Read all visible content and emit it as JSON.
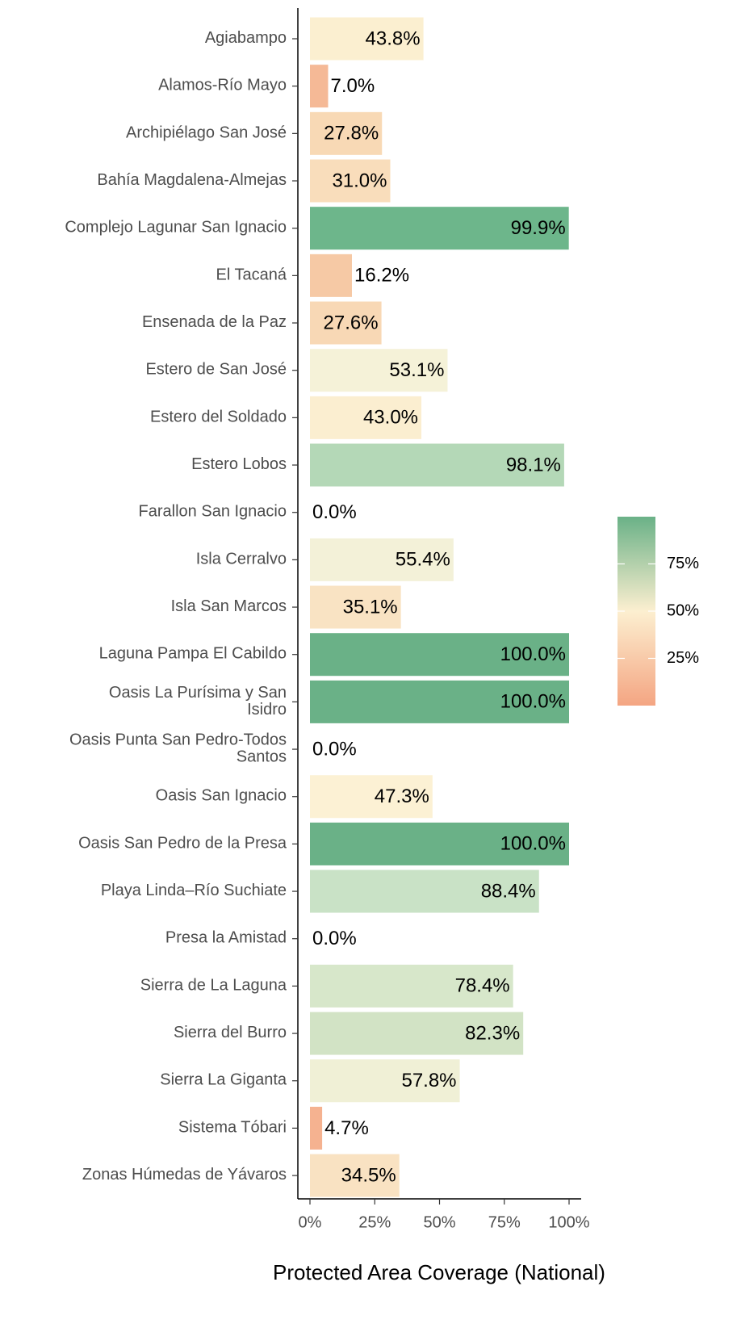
{
  "chart_data": {
    "type": "bar",
    "orientation": "horizontal",
    "x_label": "Protected Area Coverage (National)",
    "categories": [
      "Agiabampo",
      "Alamos-Río Mayo",
      "Archipiélago San José",
      "Bahía Magdalena-Almejas",
      "Complejo Lagunar San Ignacio",
      "El Tacaná",
      "Ensenada de la Paz",
      "Estero de San José",
      "Estero del Soldado",
      "Estero Lobos",
      "Farallon San Ignacio",
      "Isla Cerralvo",
      "Isla San Marcos",
      "Laguna Pampa El Cabildo",
      "Oasis La Purísima y San\nIsidro",
      "Oasis Punta San Pedro-Todos\nSantos",
      "Oasis San Ignacio",
      "Oasis San Pedro de la Presa",
      "Playa Linda–Río Suchiate",
      "Presa la Amistad",
      "Sierra de La Laguna",
      "Sierra del Burro",
      "Sierra La Giganta",
      "Sistema Tóbari",
      "Zonas Húmedas de Yávaros"
    ],
    "values": [
      43.8,
      7.0,
      27.8,
      31.0,
      99.9,
      16.2,
      27.6,
      53.1,
      43.0,
      98.1,
      0.0,
      55.4,
      35.1,
      100.0,
      100.0,
      0.0,
      47.3,
      100.0,
      88.4,
      0.0,
      78.4,
      82.3,
      57.8,
      4.7,
      34.5
    ],
    "value_labels": [
      "43.8%",
      "7.0%",
      "27.8%",
      "31.0%",
      "99.9%",
      "16.2%",
      "27.6%",
      "53.1%",
      "43.0%",
      "98.1%",
      "0.0%",
      "55.4%",
      "35.1%",
      "100.0%",
      "100.0%",
      "0.0%",
      "47.3%",
      "100.0%",
      "88.4%",
      "0.0%",
      "78.4%",
      "82.3%",
      "57.8%",
      "4.7%",
      "34.5%"
    ],
    "colors": [
      "#fbefd0",
      "#f5b996",
      "#f8d9b5",
      "#f9ddbb",
      "#6db68b",
      "#f6c9a5",
      "#f8d8b5",
      "#f5f2d8",
      "#fbeed0",
      "#b4d8b7",
      "#f4a582",
      "#f3f1d8",
      "#f9e3c3",
      "#6ab187",
      "#6ab187",
      "#f4a582",
      "#fcf1d4",
      "#6ab187",
      "#c9e2c6",
      "#f4a582",
      "#d7e7ca",
      "#d2e3c5",
      "#f0f0d6",
      "#f5b290",
      "#f9e2c2"
    ],
    "xlim": [
      0,
      100
    ],
    "xticks": [
      {
        "value": 0,
        "label": "0%"
      },
      {
        "value": 25,
        "label": "25%"
      },
      {
        "value": 50,
        "label": "50%"
      },
      {
        "value": 75,
        "label": "75%"
      },
      {
        "value": 100,
        "label": "100%"
      }
    ],
    "legend": {
      "position": "right",
      "colorscale": [
        "#f4a582",
        "#fcefd0",
        "#6ab187"
      ],
      "lim": [
        0,
        100
      ],
      "ticks": [
        {
          "value": 25,
          "label": "25%"
        },
        {
          "value": 50,
          "label": "50%"
        },
        {
          "value": 75,
          "label": "75%"
        }
      ]
    }
  }
}
